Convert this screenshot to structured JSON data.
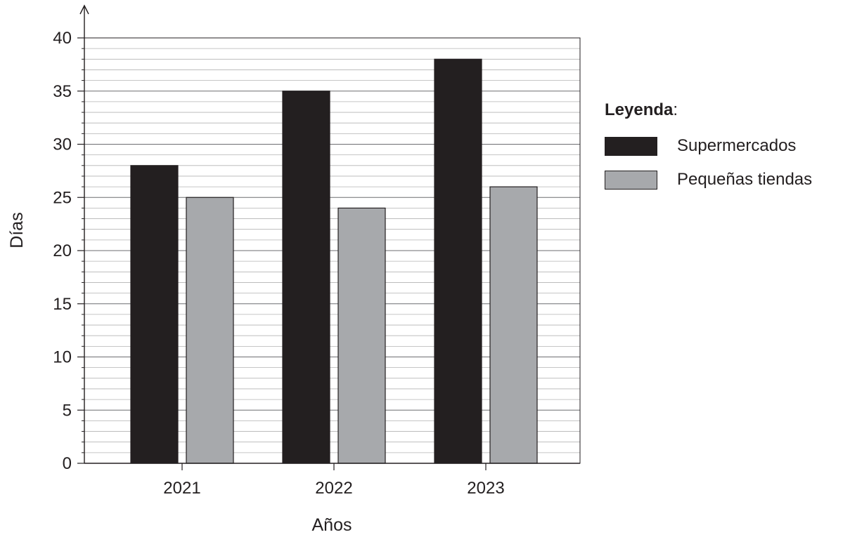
{
  "chart_data": {
    "type": "bar",
    "categories": [
      "2021",
      "2022",
      "2023"
    ],
    "series": [
      {
        "name": "Supermercados",
        "values": [
          28,
          35,
          38
        ],
        "color": "#231f20"
      },
      {
        "name": "Pequeñas tiendas",
        "values": [
          25,
          24,
          26
        ],
        "color": "#a7a9ac"
      }
    ],
    "xlabel": "Años",
    "ylabel": "Días",
    "ylim": [
      0,
      40
    ],
    "yticks": [
      0,
      5,
      10,
      15,
      20,
      25,
      30,
      35,
      40
    ],
    "minor_gridline_step": 1,
    "grid": true,
    "legend": {
      "title": "Leyenda",
      "title_suffix": ":",
      "placement": "right"
    }
  }
}
